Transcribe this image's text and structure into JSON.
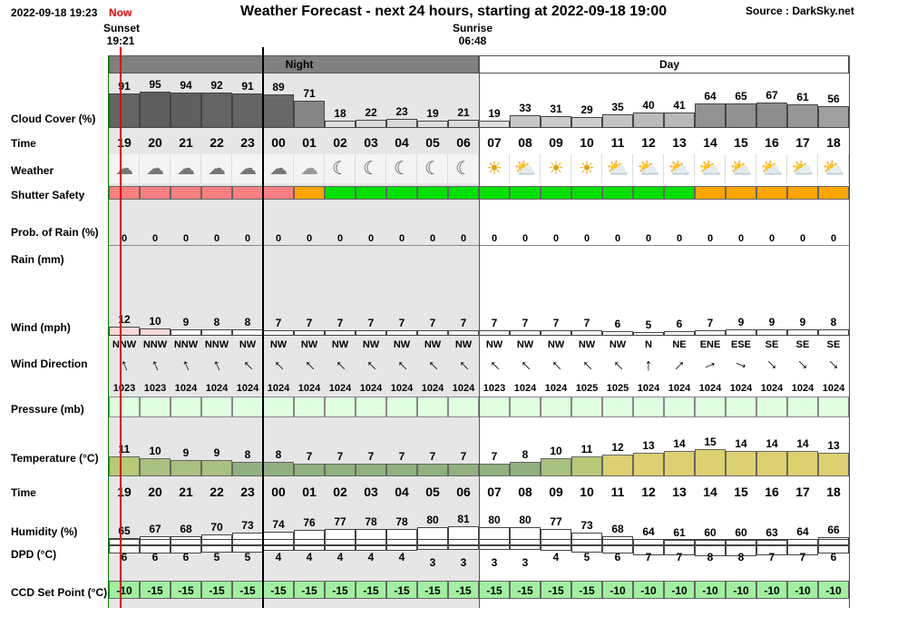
{
  "header": {
    "datetime": "2022-09-18 19:23",
    "now_label": "Now",
    "title": "Weather Forecast - next 24 hours, starting at 2022-09-18 19:00",
    "source": "Source : DarkSky.net",
    "sunset_label": "Sunset",
    "sunset_time": "19:21",
    "sunrise_label": "Sunrise",
    "sunrise_time": "06:48",
    "night_label": "Night",
    "day_label": "Day"
  },
  "row_labels": {
    "cloud": "Cloud Cover (%)",
    "time": "Time",
    "weather": "Weather",
    "shutter": "Shutter Safety",
    "prob_rain": "Prob. of Rain (%)",
    "rain": "Rain (mm)",
    "wind": "Wind (mph)",
    "wind_dir": "Wind Direction",
    "pressure": "Pressure (mb)",
    "temperature": "Temperature (°C)",
    "time2": "Time",
    "humidity": "Humidity (%)",
    "dpd": "DPD (°C)",
    "ccd": "CCD Set Point (°C)"
  },
  "hours": [
    "19",
    "20",
    "21",
    "22",
    "23",
    "00",
    "01",
    "02",
    "03",
    "04",
    "05",
    "06",
    "07",
    "08",
    "09",
    "10",
    "11",
    "12",
    "13",
    "14",
    "15",
    "16",
    "17",
    "18"
  ],
  "cloud_cover": [
    91,
    95,
    94,
    92,
    91,
    89,
    71,
    18,
    22,
    23,
    19,
    21,
    19,
    33,
    31,
    29,
    35,
    40,
    41,
    64,
    65,
    67,
    61,
    56
  ],
  "weather_icons": [
    "cloud-icon",
    "cloud-icon",
    "cloud-icon",
    "cloud-icon",
    "cloud-icon",
    "cloud-icon",
    "moon-cloud-icon",
    "moon-icon",
    "moon-icon",
    "moon-icon",
    "moon-icon",
    "moon-icon",
    "sun-icon",
    "sun-cloud-icon",
    "sun-icon",
    "sun-icon",
    "sun-cloud-icon",
    "sun-cloud-icon",
    "sun-cloud-icon",
    "sun-cloud-icon",
    "sun-cloud-icon",
    "sun-cloud-icon",
    "sun-cloud-icon",
    "sun-cloud-icon"
  ],
  "shutter_safety": [
    "red",
    "red",
    "red",
    "red",
    "red",
    "red",
    "orange",
    "green",
    "green",
    "green",
    "green",
    "green",
    "green",
    "green",
    "green",
    "green",
    "green",
    "green",
    "green",
    "orange",
    "orange",
    "orange",
    "orange",
    "orange"
  ],
  "shutter_colors": {
    "red": "#f88080",
    "orange": "#ffa500",
    "green": "#00e000"
  },
  "prob_rain": [
    0,
    0,
    0,
    0,
    0,
    0,
    0,
    0,
    0,
    0,
    0,
    0,
    0,
    0,
    0,
    0,
    0,
    0,
    0,
    0,
    0,
    0,
    0,
    0
  ],
  "wind_speed": [
    12,
    10,
    9,
    8,
    8,
    7,
    7,
    7,
    7,
    7,
    7,
    7,
    7,
    7,
    7,
    7,
    6,
    5,
    6,
    7,
    9,
    9,
    9,
    8
  ],
  "wind_direction": [
    "NNW",
    "NNW",
    "NNW",
    "NNW",
    "NW",
    "NW",
    "NW",
    "NW",
    "NW",
    "NW",
    "NW",
    "NW",
    "NW",
    "NW",
    "NW",
    "NW",
    "NW",
    "N",
    "NE",
    "ENE",
    "ESE",
    "SE",
    "SE",
    "SE"
  ],
  "pressure": [
    1023,
    1023,
    1024,
    1024,
    1024,
    1024,
    1024,
    1024,
    1024,
    1024,
    1024,
    1024,
    1023,
    1024,
    1024,
    1025,
    1025,
    1024,
    1024,
    1024,
    1024,
    1024,
    1024,
    1024
  ],
  "temperature": [
    11,
    10,
    9,
    9,
    8,
    8,
    7,
    7,
    7,
    7,
    7,
    7,
    7,
    8,
    10,
    11,
    12,
    13,
    14,
    15,
    14,
    14,
    14,
    13
  ],
  "humidity": [
    65,
    67,
    68,
    70,
    73,
    74,
    76,
    77,
    78,
    78,
    80,
    81,
    80,
    80,
    77,
    73,
    68,
    64,
    61,
    60,
    60,
    63,
    64,
    66
  ],
  "dpd": [
    6,
    6,
    6,
    5,
    5,
    4,
    4,
    4,
    4,
    4,
    3,
    3,
    3,
    3,
    4,
    5,
    6,
    7,
    7,
    8,
    8,
    7,
    7,
    6
  ],
  "ccd_set_point": [
    -10,
    -15,
    -15,
    -15,
    -15,
    -15,
    -15,
    -15,
    -15,
    -15,
    -15,
    -15,
    -15,
    -15,
    -15,
    -15,
    -10,
    -10,
    -10,
    -10,
    -10,
    -10,
    -10,
    -10
  ],
  "colors": {
    "night_band": "#808080",
    "night_shade": "#e6e6e6",
    "cloud_bar": "#888888",
    "pressure_bg": "#e0ffe0",
    "ccd_bg": "#a0f0a0",
    "sunset_line": "#dd0000",
    "now_label": "#ee0000",
    "border_green": "#008000"
  }
}
